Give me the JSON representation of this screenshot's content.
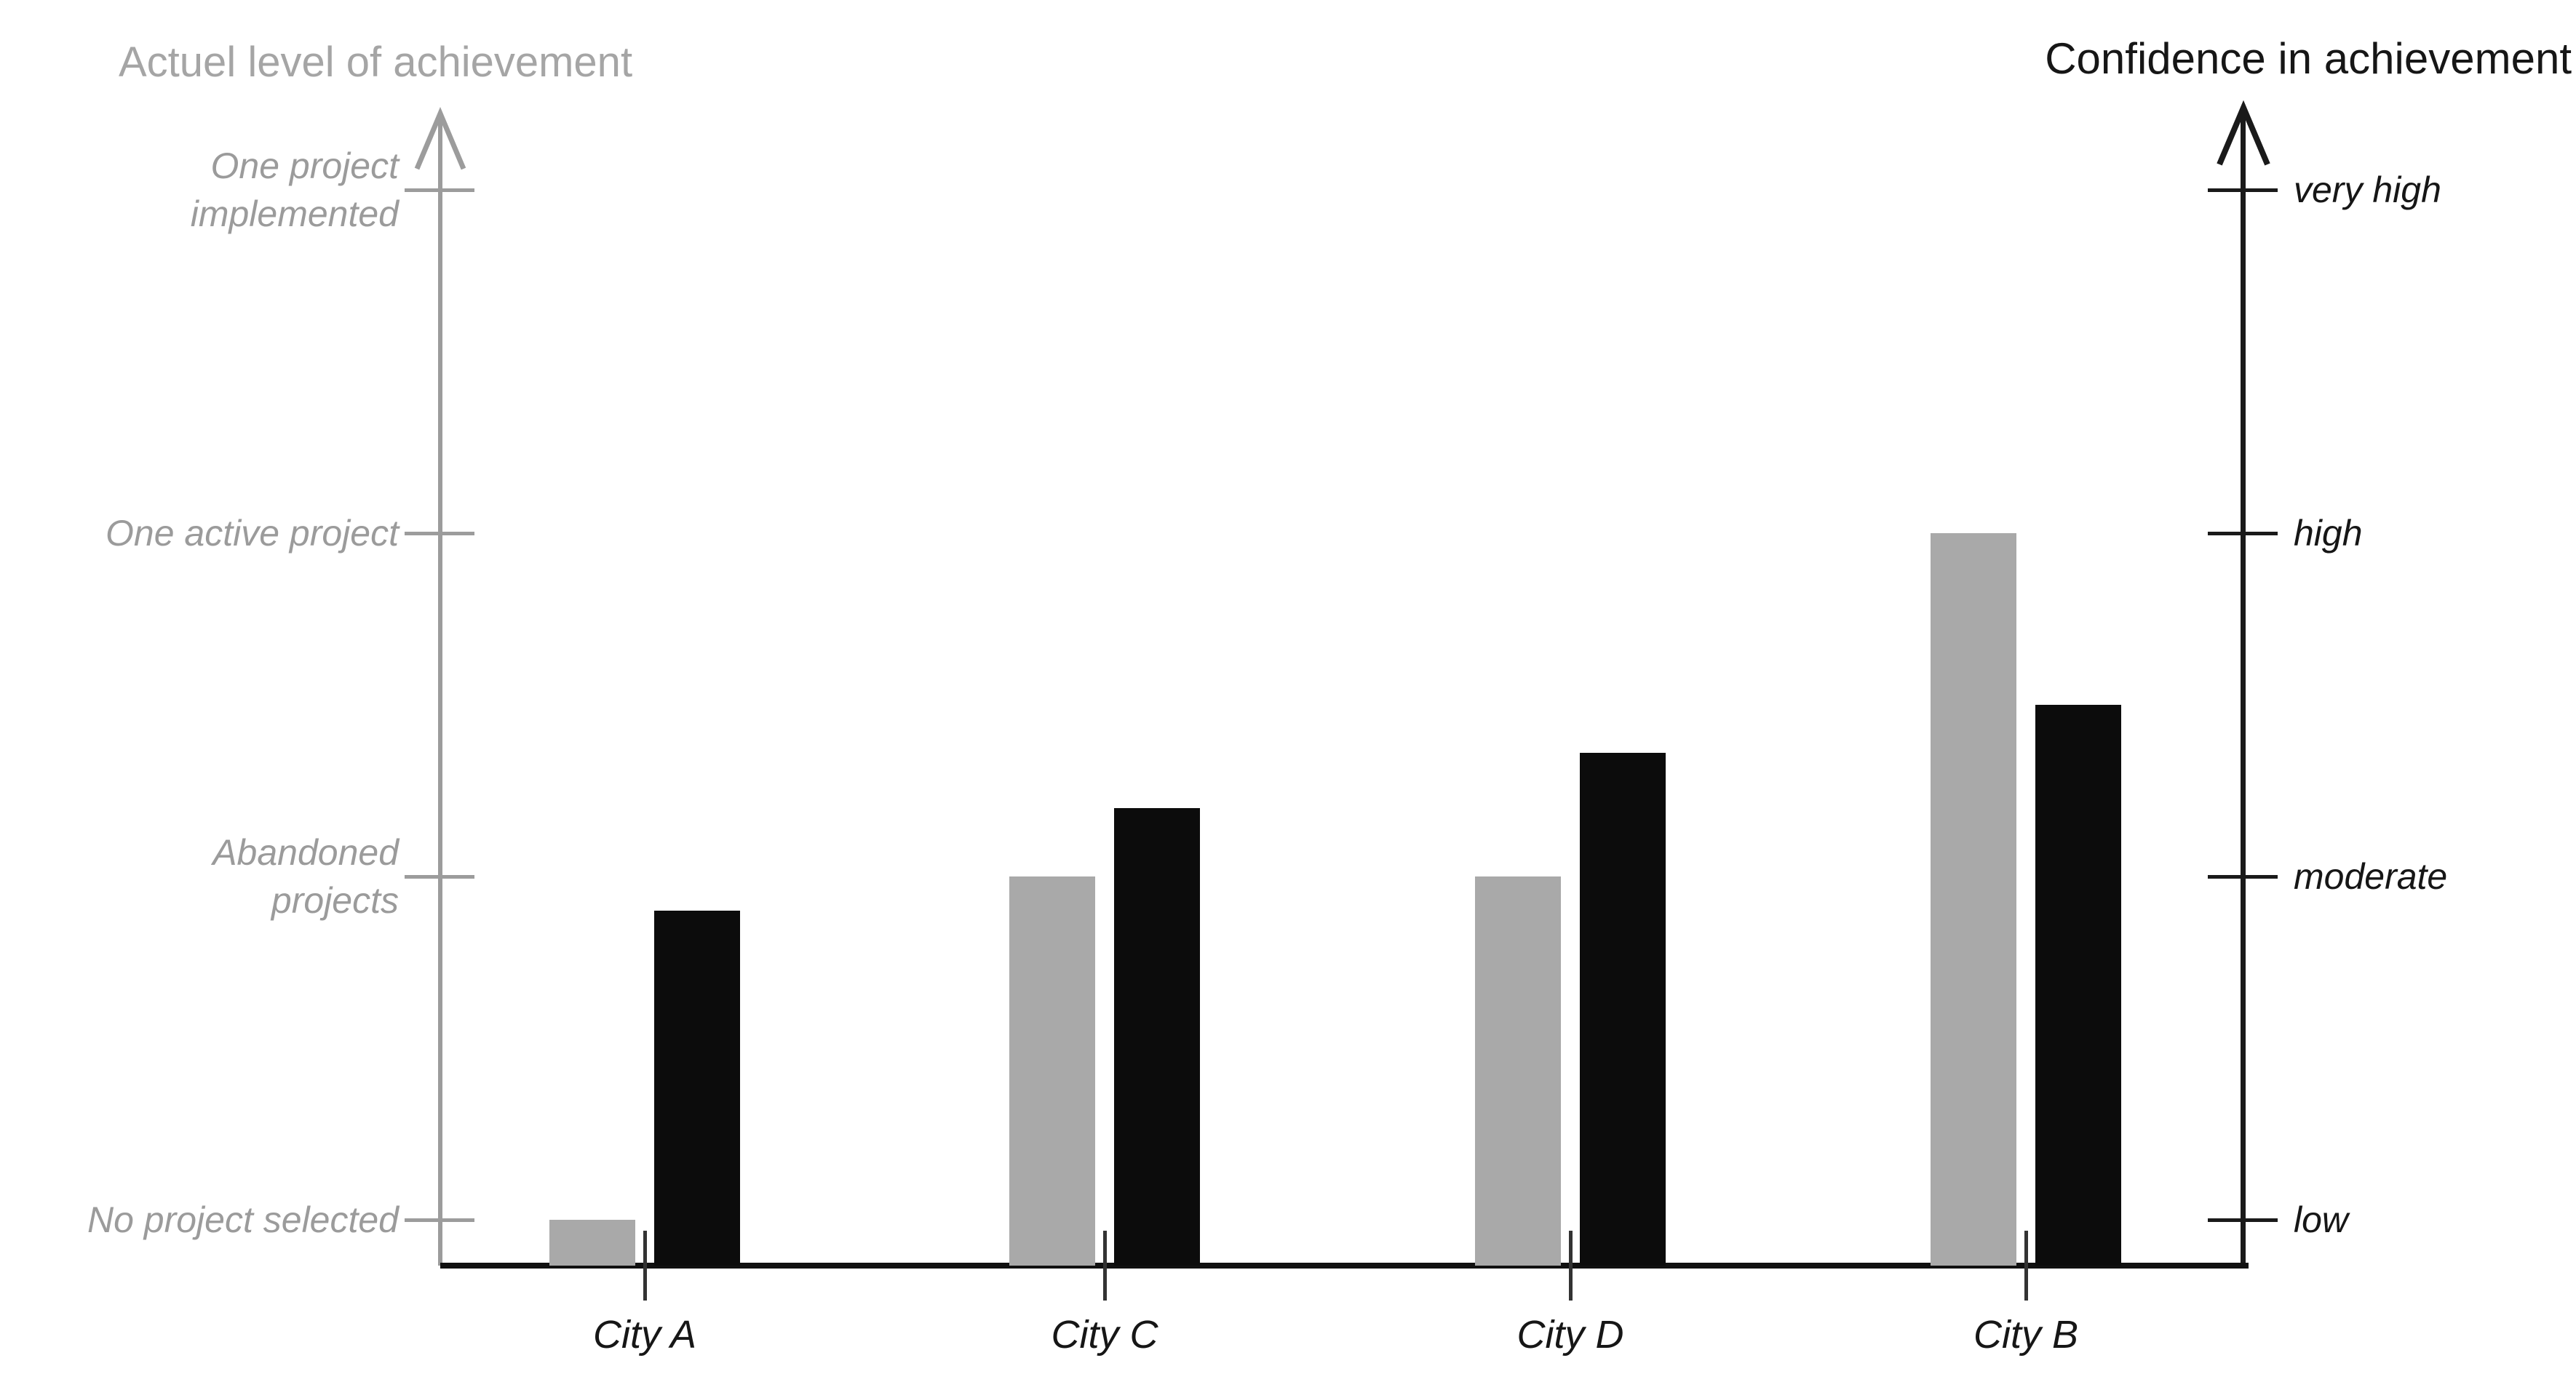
{
  "colors": {
    "achievement_gray": "#a9a9a9",
    "confidence_black": "#0c0c0c",
    "left_axis_gray": "#9c9c9c",
    "right_axis_black": "#1a1a1a",
    "baseline_black": "#111111",
    "left_text_gray": "#9b9b9b",
    "left_title_gray": "#a5a5a5",
    "text_black": "#161616"
  },
  "chart_data": {
    "type": "bar",
    "categories": [
      "City A",
      "City C",
      "City D",
      "City B"
    ],
    "series": [
      {
        "name": "Actuel level of achievement",
        "axis": "left",
        "color": "#a9a9a9",
        "values": [
          1,
          2,
          2,
          3
        ],
        "value_labels": [
          "No project selected",
          "Abandoned projects",
          "Abandoned projects",
          "One active project"
        ]
      },
      {
        "name": "Confidence in achievement",
        "axis": "right",
        "color": "#0c0c0c",
        "values": [
          1.9,
          2.2,
          2.36,
          2.5
        ],
        "value_scale": "low=1, moderate=2, high=3, very high=4"
      }
    ],
    "left_axis": {
      "title": "Actuel level of achievement",
      "ticks_top_to_bottom": [
        "One project\nimplemented",
        "One active project",
        "Abandoned\nprojects",
        "No project selected"
      ]
    },
    "right_axis": {
      "title": "Confidence in achievement",
      "ticks_top_to_bottom": [
        "very high",
        "high",
        "moderate",
        "low"
      ]
    },
    "ylim": [
      0,
      4.3
    ],
    "grid": false,
    "legend": false
  }
}
